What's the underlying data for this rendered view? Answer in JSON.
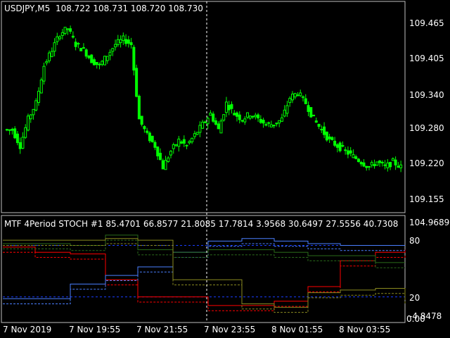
{
  "main_chart": {
    "symbol_label": "USDJPY,M5",
    "ohlc": "108.722 108.731 108.720 108.730",
    "price_ticks": [
      "109.465",
      "109.405",
      "109.340",
      "109.280",
      "109.220",
      "109.155"
    ],
    "candle_color": "#00ff00"
  },
  "indicator": {
    "header": "MTF 4Period STOCH #1  85.4701 66.8577 21.8085 17.7814 3.9568 30.6497 27.5556 40.7308",
    "max_label": "104.9689",
    "level_high": "80",
    "level_low": "20",
    "min_label": "-4.8478",
    "min_label_overlay": "0.00",
    "line_colors": [
      "#ff0000",
      "#4a7fff",
      "#2a6b1a",
      "#8a8a20"
    ]
  },
  "time_axis": [
    "7 Nov 2019",
    "7 Nov 19:55",
    "7 Nov 21:55",
    "7 Nov 23:55",
    "8 Nov 01:55",
    "8 Nov 03:55"
  ],
  "chart_data": {
    "type": "candlestick",
    "title": "USDJPY,M5",
    "ylim": [
      109.13,
      109.51
    ],
    "close_series": [
      109.28,
      109.25,
      109.3,
      109.33,
      109.4,
      109.43,
      109.46,
      109.47,
      109.44,
      109.43,
      109.41,
      109.4,
      109.42,
      109.44,
      109.45,
      109.44,
      109.3,
      109.27,
      109.25,
      109.21,
      109.24,
      109.26,
      109.25,
      109.27,
      109.29,
      109.31,
      109.28,
      109.33,
      109.31,
      109.3,
      109.31,
      109.3,
      109.29,
      109.29,
      109.3,
      109.34,
      109.35,
      109.33,
      109.3,
      109.28,
      109.26,
      109.25,
      109.24,
      109.23,
      109.22,
      109.21,
      109.22,
      109.21,
      109.22,
      109.21
    ]
  }
}
